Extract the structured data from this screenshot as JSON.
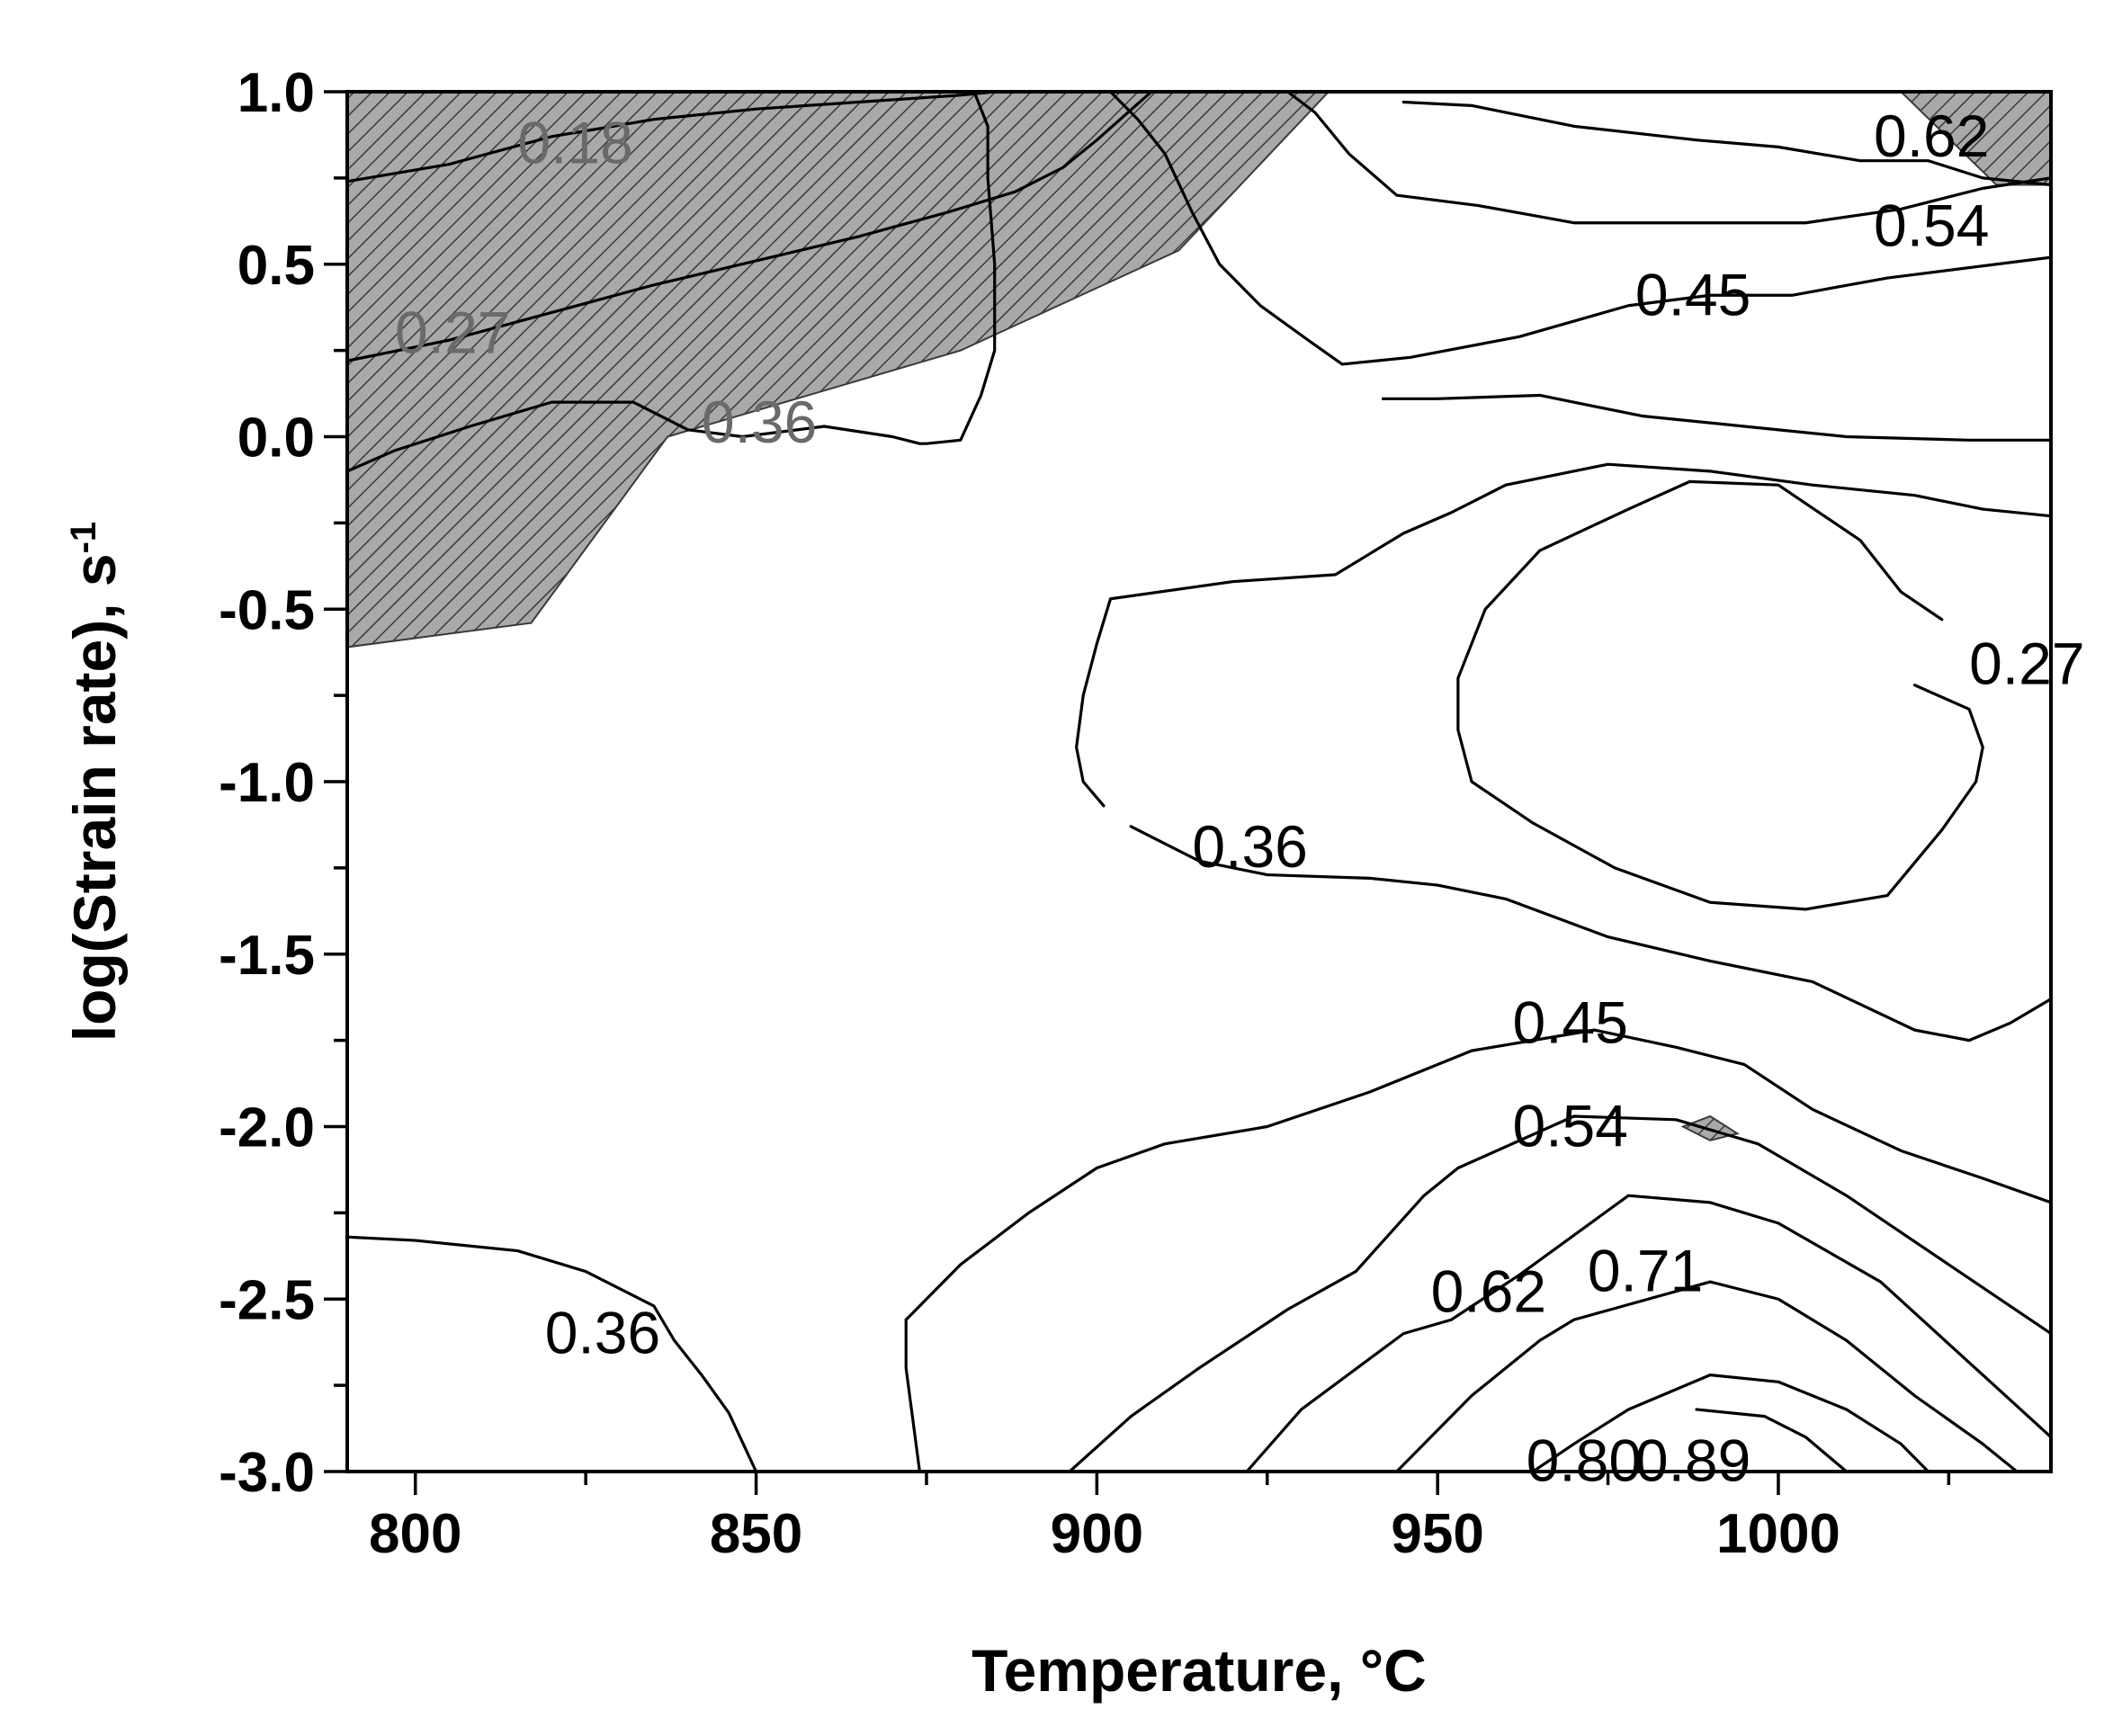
{
  "chart_data": {
    "type": "contour",
    "xlabel": "Temperature, °C",
    "ylabel_main": "log(Strain rate), s",
    "ylabel_sup": "-1",
    "xlim": [
      790,
      1040
    ],
    "ylim": [
      -3.0,
      1.0
    ],
    "x_ticks": [
      {
        "value": 800,
        "label": "800"
      },
      {
        "value": 850,
        "label": "850"
      },
      {
        "value": 900,
        "label": "900"
      },
      {
        "value": 950,
        "label": "950"
      },
      {
        "value": 1000,
        "label": "1000"
      }
    ],
    "x_minor_ticks": [
      825,
      875,
      925,
      975,
      1025
    ],
    "y_ticks": [
      {
        "value": 1.0,
        "label": "1.0"
      },
      {
        "value": 0.5,
        "label": "0.5"
      },
      {
        "value": 0.0,
        "label": "0.0"
      },
      {
        "value": -0.5,
        "label": "-0.5"
      },
      {
        "value": -1.0,
        "label": "-1.0"
      },
      {
        "value": -1.5,
        "label": "-1.5"
      },
      {
        "value": -2.0,
        "label": "-2.0"
      },
      {
        "value": -2.5,
        "label": "-2.5"
      },
      {
        "value": -3.0,
        "label": "-3.0"
      }
    ],
    "y_minor_ticks": [
      0.75,
      0.25,
      -0.25,
      -0.75,
      -1.25,
      -1.75,
      -2.25,
      -2.75
    ],
    "instability_regions": [
      {
        "points": [
          [
            790,
            1.0
          ],
          [
            934,
            1.0
          ],
          [
            912,
            0.54
          ],
          [
            880,
            0.25
          ],
          [
            837,
            0.0
          ],
          [
            817,
            -0.54
          ],
          [
            790,
            -0.61
          ]
        ]
      },
      {
        "points": [
          [
            1018,
            1.0
          ],
          [
            1040,
            1.0
          ],
          [
            1040,
            0.73
          ],
          [
            1032,
            0.73
          ]
        ]
      },
      {
        "points": [
          [
            986,
            -2.0
          ],
          [
            990,
            -1.97
          ],
          [
            994,
            -2.02
          ],
          [
            990,
            -2.04
          ]
        ]
      }
    ],
    "contours": [
      {
        "level": "0.18",
        "points": [
          [
            790,
            0.74
          ],
          [
            805,
            0.79
          ],
          [
            820,
            0.87
          ],
          [
            835,
            0.92
          ],
          [
            850,
            0.95
          ],
          [
            865,
            0.97
          ],
          [
            880,
            0.99
          ],
          [
            885,
            1.0
          ]
        ]
      },
      {
        "level": "0.27",
        "points": [
          [
            790,
            0.22
          ],
          [
            805,
            0.28
          ],
          [
            820,
            0.36
          ],
          [
            835,
            0.44
          ],
          [
            850,
            0.51
          ],
          [
            865,
            0.58
          ],
          [
            878,
            0.65
          ],
          [
            888,
            0.71
          ],
          [
            895,
            0.78
          ],
          [
            900,
            0.86
          ],
          [
            904,
            0.93
          ],
          [
            908,
            1.0
          ]
        ]
      },
      {
        "level": "0.36",
        "points": [
          [
            790,
            -0.1
          ],
          [
            797,
            -0.04
          ],
          [
            808,
            0.03
          ],
          [
            820,
            0.1
          ],
          [
            832,
            0.1
          ],
          [
            840,
            0.02
          ],
          [
            848,
            0.0
          ],
          [
            860,
            0.03
          ],
          [
            870,
            0.0
          ],
          [
            874,
            -0.02
          ],
          [
            875,
            -0.02
          ],
          [
            880,
            -0.01
          ],
          [
            883,
            0.12
          ],
          [
            885,
            0.25
          ],
          [
            885,
            0.5
          ],
          [
            884,
            0.75
          ],
          [
            884,
            0.9
          ],
          [
            882,
            1.0
          ]
        ]
      },
      {
        "level": "0.45",
        "points": [
          [
            902,
            1.0
          ],
          [
            906,
            0.92
          ],
          [
            910,
            0.82
          ],
          [
            914,
            0.65
          ],
          [
            918,
            0.5
          ],
          [
            924,
            0.38
          ],
          [
            931,
            0.28
          ],
          [
            936,
            0.21
          ],
          [
            946,
            0.23
          ],
          [
            962,
            0.29
          ],
          [
            978,
            0.38
          ],
          [
            990,
            0.41
          ],
          [
            1002,
            0.41
          ],
          [
            1016,
            0.46
          ],
          [
            1040,
            0.52
          ]
        ]
      },
      {
        "level": "0.54",
        "points": [
          [
            928,
            1.0
          ],
          [
            932,
            0.94
          ],
          [
            937,
            0.82
          ],
          [
            944,
            0.7
          ],
          [
            956,
            0.67
          ],
          [
            970,
            0.62
          ],
          [
            988,
            0.62
          ],
          [
            1004,
            0.62
          ],
          [
            1018,
            0.66
          ],
          [
            1030,
            0.72
          ],
          [
            1040,
            0.75
          ]
        ]
      },
      {
        "level": "0.62",
        "points": [
          [
            945,
            0.97
          ],
          [
            955,
            0.96
          ],
          [
            970,
            0.9
          ],
          [
            988,
            0.86
          ],
          [
            1000,
            0.84
          ],
          [
            1012,
            0.8
          ],
          [
            1022,
            0.8
          ],
          [
            1030,
            0.75
          ],
          [
            1040,
            0.73
          ]
        ]
      },
      {
        "level": "0.36",
        "points": [
          [
            942,
            0.11
          ],
          [
            950,
            0.11
          ],
          [
            965,
            0.12
          ],
          [
            980,
            0.06
          ],
          [
            995,
            0.03
          ],
          [
            1010,
            0.0
          ],
          [
            1028,
            -0.01
          ],
          [
            1040,
            -0.01
          ]
        ]
      },
      {
        "level": "0.36",
        "points": [
          [
            901,
            -1.07
          ],
          [
            898,
            -1.0
          ],
          [
            897,
            -0.9
          ],
          [
            898,
            -0.75
          ],
          [
            900,
            -0.6
          ],
          [
            902,
            -0.47
          ],
          [
            920,
            -0.42
          ],
          [
            935,
            -0.4
          ],
          [
            945,
            -0.28
          ],
          [
            952,
            -0.22
          ],
          [
            960,
            -0.14
          ],
          [
            975,
            -0.08
          ],
          [
            990,
            -0.1
          ],
          [
            1005,
            -0.14
          ],
          [
            1020,
            -0.17
          ],
          [
            1030,
            -0.21
          ],
          [
            1040,
            -0.23
          ]
        ]
      },
      {
        "level": "0.36",
        "points": [
          [
            905,
            -1.13
          ],
          [
            915,
            -1.23
          ],
          [
            925,
            -1.27
          ],
          [
            940,
            -1.28
          ],
          [
            950,
            -1.3
          ],
          [
            960,
            -1.34
          ],
          [
            975,
            -1.45
          ],
          [
            990,
            -1.52
          ],
          [
            1005,
            -1.58
          ],
          [
            1020,
            -1.72
          ],
          [
            1028,
            -1.75
          ],
          [
            1034,
            -1.7
          ],
          [
            1040,
            -1.63
          ]
        ]
      },
      {
        "level": "0.27",
        "points": [
          [
            1020,
            -0.72
          ],
          [
            1028,
            -0.79
          ],
          [
            1030,
            -0.9
          ],
          [
            1029,
            -1.0
          ],
          [
            1024,
            -1.14
          ],
          [
            1016,
            -1.33
          ],
          [
            1004,
            -1.37
          ],
          [
            990,
            -1.35
          ],
          [
            976,
            -1.25
          ],
          [
            964,
            -1.12
          ],
          [
            955,
            -1.0
          ],
          [
            953,
            -0.85
          ],
          [
            953,
            -0.7
          ],
          [
            957,
            -0.5
          ],
          [
            965,
            -0.33
          ],
          [
            978,
            -0.21
          ],
          [
            987,
            -0.13
          ],
          [
            1000,
            -0.14
          ],
          [
            1012,
            -0.3
          ],
          [
            1018,
            -0.45
          ],
          [
            1024,
            -0.53
          ]
        ]
      },
      {
        "level": "0.45",
        "points": [
          [
            872,
            -2.56
          ],
          [
            872,
            -2.7
          ],
          [
            873,
            -2.85
          ],
          [
            874,
            -3.0
          ]
        ]
      },
      {
        "level": "0.45",
        "points": [
          [
            872,
            -2.56
          ],
          [
            880,
            -2.4
          ],
          [
            890,
            -2.25
          ],
          [
            900,
            -2.12
          ],
          [
            910,
            -2.05
          ],
          [
            925,
            -2.0
          ],
          [
            940,
            -1.9
          ],
          [
            950,
            -1.82
          ],
          [
            955,
            -1.78
          ],
          [
            973,
            -1.72
          ],
          [
            985,
            -1.77
          ],
          [
            995,
            -1.82
          ],
          [
            1005,
            -1.95
          ],
          [
            1018,
            -2.07
          ],
          [
            1030,
            -2.15
          ],
          [
            1040,
            -2.22
          ]
        ]
      },
      {
        "level": "0.54",
        "points": [
          [
            896,
            -3.0
          ],
          [
            905,
            -2.84
          ],
          [
            915,
            -2.7
          ],
          [
            928,
            -2.53
          ],
          [
            938,
            -2.42
          ],
          [
            948,
            -2.2
          ],
          [
            953,
            -2.12
          ],
          [
            970,
            -1.97
          ],
          [
            985,
            -1.98
          ],
          [
            997,
            -2.05
          ],
          [
            1010,
            -2.2
          ],
          [
            1025,
            -2.4
          ],
          [
            1040,
            -2.6
          ]
        ]
      },
      {
        "level": "0.62",
        "points": [
          [
            922,
            -3.0
          ],
          [
            930,
            -2.82
          ],
          [
            945,
            -2.6
          ],
          [
            952,
            -2.56
          ],
          [
            962,
            -2.43
          ],
          [
            978,
            -2.2
          ],
          [
            990,
            -2.22
          ],
          [
            1000,
            -2.28
          ],
          [
            1015,
            -2.45
          ],
          [
            1030,
            -2.72
          ],
          [
            1040,
            -2.9
          ]
        ]
      },
      {
        "level": "0.71",
        "points": [
          [
            944,
            -3.0
          ],
          [
            955,
            -2.78
          ],
          [
            965,
            -2.62
          ],
          [
            970,
            -2.56
          ],
          [
            990,
            -2.45
          ],
          [
            1000,
            -2.5
          ],
          [
            1010,
            -2.62
          ],
          [
            1020,
            -2.78
          ],
          [
            1030,
            -2.92
          ],
          [
            1035,
            -3.0
          ]
        ]
      },
      {
        "level": "0.80",
        "points": [
          [
            964,
            -3.0
          ],
          [
            970,
            -2.92
          ],
          [
            978,
            -2.82
          ],
          [
            990,
            -2.72
          ],
          [
            1000,
            -2.74
          ],
          [
            1010,
            -2.82
          ],
          [
            1018,
            -2.92
          ],
          [
            1022,
            -3.0
          ]
        ]
      },
      {
        "level": "0.89",
        "points": [
          [
            988,
            -2.82
          ],
          [
            998,
            -2.84
          ],
          [
            1004,
            -2.9
          ],
          [
            1010,
            -3.0
          ]
        ]
      },
      {
        "level": "0.36",
        "points": [
          [
            790,
            -2.32
          ],
          [
            800,
            -2.33
          ],
          [
            815,
            -2.36
          ],
          [
            825,
            -2.42
          ],
          [
            835,
            -2.52
          ],
          [
            838,
            -2.62
          ],
          [
            842,
            -2.72
          ],
          [
            846,
            -2.83
          ],
          [
            850,
            -3.0
          ]
        ]
      }
    ],
    "contour_labels": [
      {
        "text": "0.18",
        "x": 815,
        "y": 0.85,
        "dim": true
      },
      {
        "text": "0.27",
        "x": 797,
        "y": 0.3,
        "dim": true
      },
      {
        "text": "0.36",
        "x": 842,
        "y": 0.04,
        "dim": true
      },
      {
        "text": "0.62",
        "x": 1014,
        "y": 0.87,
        "dim": false
      },
      {
        "text": "0.54",
        "x": 1014,
        "y": 0.61,
        "dim": false
      },
      {
        "text": "0.45",
        "x": 979,
        "y": 0.41,
        "dim": false
      },
      {
        "text": "0.27",
        "x": 1028,
        "y": -0.66,
        "dim": false
      },
      {
        "text": "0.36",
        "x": 914,
        "y": -1.19,
        "dim": false
      },
      {
        "text": "0.45",
        "x": 961,
        "y": -1.7,
        "dim": false
      },
      {
        "text": "0.54",
        "x": 961,
        "y": -2.0,
        "dim": false
      },
      {
        "text": "0.62",
        "x": 949,
        "y": -2.48,
        "dim": false
      },
      {
        "text": "0.71",
        "x": 972,
        "y": -2.42,
        "dim": false
      },
      {
        "text": "0.80",
        "x": 963,
        "y": -2.97,
        "dim": false
      },
      {
        "text": "0.89",
        "x": 979,
        "y": -2.97,
        "dim": false
      },
      {
        "text": "0.36",
        "x": 819,
        "y": -2.6,
        "dim": false
      }
    ]
  }
}
